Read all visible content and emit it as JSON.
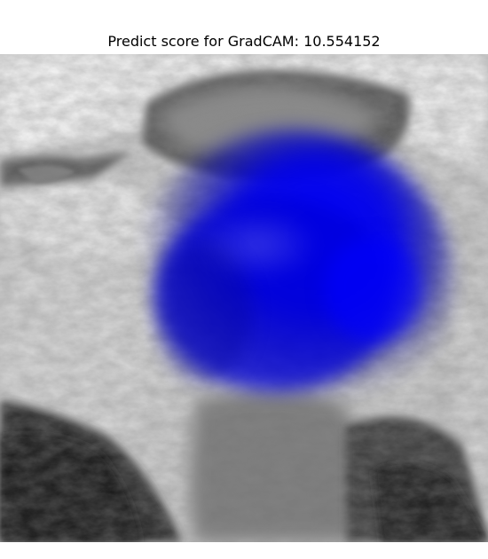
{
  "figure": {
    "title": "Predict score for GradCAM: 10.554152"
  },
  "overlay": {
    "heatmap_color": "#0000ff",
    "subject_palette": [
      "#f2f2f2",
      "#d0d0d0",
      "#9a9a9a",
      "#5e5e5e",
      "#262626"
    ]
  }
}
